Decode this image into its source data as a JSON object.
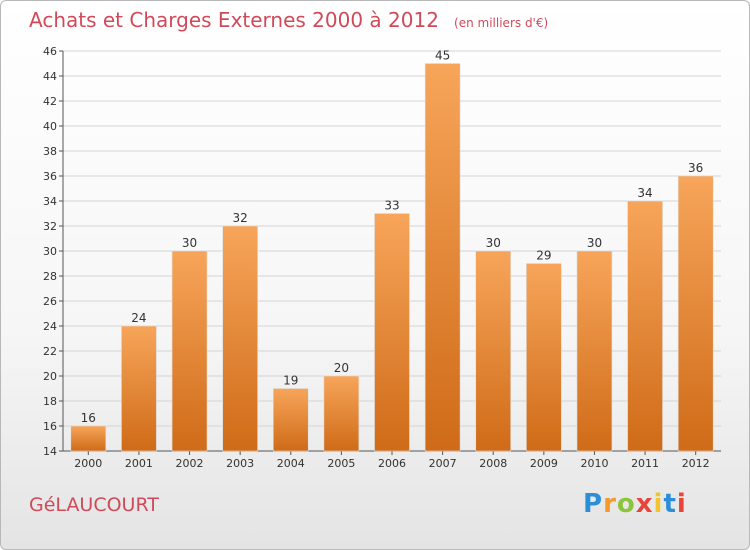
{
  "header": {
    "title": "Achats et Charges Externes 2000 à 2012",
    "subtitle": "(en milliers d'€)"
  },
  "footer": {
    "commune": "GéLAUCOURT",
    "logo": {
      "letters": [
        "P",
        "r",
        "o",
        "x",
        "i",
        "t",
        "i"
      ],
      "colors": [
        "#2a8fd8",
        "#f29a2e",
        "#8cc43c",
        "#e8443a",
        "#f2c52e",
        "#2a8fd8",
        "#e8443a"
      ]
    }
  },
  "chart_data": {
    "type": "bar",
    "categories": [
      "2000",
      "2001",
      "2002",
      "2003",
      "2004",
      "2005",
      "2006",
      "2007",
      "2008",
      "2009",
      "2010",
      "2011",
      "2012"
    ],
    "values": [
      16,
      24,
      30,
      32,
      19,
      20,
      33,
      45,
      30,
      29,
      30,
      34,
      36
    ],
    "title": "Achats et Charges Externes 2000 à 2012",
    "subtitle": "(en milliers d'€)",
    "ylim": [
      14,
      46
    ],
    "yticks": [
      14,
      16,
      18,
      20,
      22,
      24,
      26,
      28,
      30,
      32,
      34,
      36,
      38,
      40,
      42,
      44,
      46
    ],
    "grid": true,
    "bar_color_top": "#f7a55a",
    "bar_color_bottom": "#cf6b18"
  }
}
